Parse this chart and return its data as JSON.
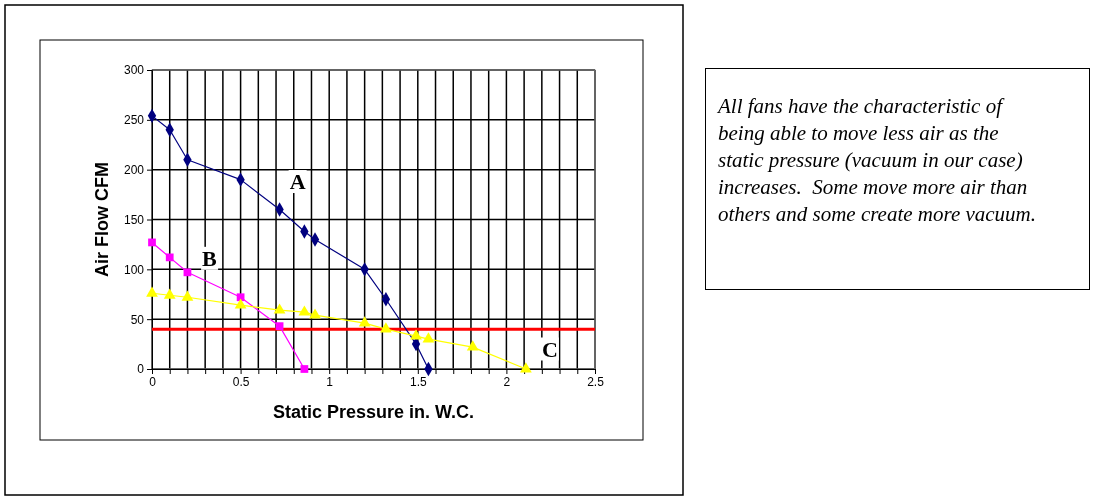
{
  "chart_data": {
    "type": "line",
    "xlabel": "Static Pressure in. W.C.",
    "ylabel": "Air Flow CFM",
    "xlim": [
      0,
      2.5
    ],
    "ylim": [
      0,
      300
    ],
    "xticks": [
      0,
      {
        "value": 0.1,
        "label": null
      },
      {
        "value": 0.2,
        "label": null
      },
      {
        "value": 0.3,
        "label": null
      },
      {
        "value": 0.4,
        "label": null
      },
      0.5,
      {
        "value": 0.6,
        "label": null
      },
      {
        "value": 0.7,
        "label": null
      },
      {
        "value": 0.8,
        "label": null
      },
      {
        "value": 0.9,
        "label": null
      },
      1,
      {
        "value": 1.1,
        "label": null
      },
      {
        "value": 1.2,
        "label": null
      },
      {
        "value": 1.3,
        "label": null
      },
      {
        "value": 1.4,
        "label": null
      },
      1.5,
      {
        "value": 1.6,
        "label": null
      },
      {
        "value": 1.7,
        "label": null
      },
      {
        "value": 1.8,
        "label": null
      },
      {
        "value": 1.9,
        "label": null
      },
      2,
      {
        "value": 2.1,
        "label": null
      },
      {
        "value": 2.2,
        "label": null
      },
      {
        "value": 2.3,
        "label": null
      },
      {
        "value": 2.4,
        "label": null
      },
      2.5
    ],
    "yticks": [
      0,
      50,
      100,
      150,
      200,
      250,
      300
    ],
    "grid": true,
    "line_style": "solid",
    "series": [
      {
        "name": "A",
        "color": "#000080",
        "marker": "diamond",
        "x": [
          0,
          0.1,
          0.2,
          0.5,
          0.72,
          0.86,
          0.92,
          1.2,
          1.32,
          1.49,
          1.56
        ],
        "values": [
          254,
          240,
          210,
          190,
          160,
          138,
          130,
          100,
          70,
          25,
          0
        ]
      },
      {
        "name": "B",
        "color": "#ff00ff",
        "marker": "square",
        "x": [
          0,
          0.1,
          0.2,
          0.5,
          0.72,
          0.86
        ],
        "values": [
          127,
          112,
          97,
          72,
          43,
          0
        ]
      },
      {
        "name": "C",
        "color": "#ffff00",
        "marker": "triangle",
        "x": [
          0,
          0.1,
          0.2,
          0.5,
          0.72,
          0.86,
          0.92,
          1.2,
          1.32,
          1.49,
          1.56,
          1.81,
          2.11
        ],
        "values": [
          76,
          74,
          72,
          64,
          59,
          57,
          54,
          46,
          40,
          33,
          30,
          22,
          0
        ]
      }
    ],
    "ref_lines": [
      {
        "axis": "y",
        "value": 40,
        "color": "#ff0000"
      }
    ],
    "annotations": [
      "All fans have the characteristic of being able to move less air as the static pressure (vacuum in our case) increases.  Some move more air than others and some create more vacuum."
    ]
  }
}
